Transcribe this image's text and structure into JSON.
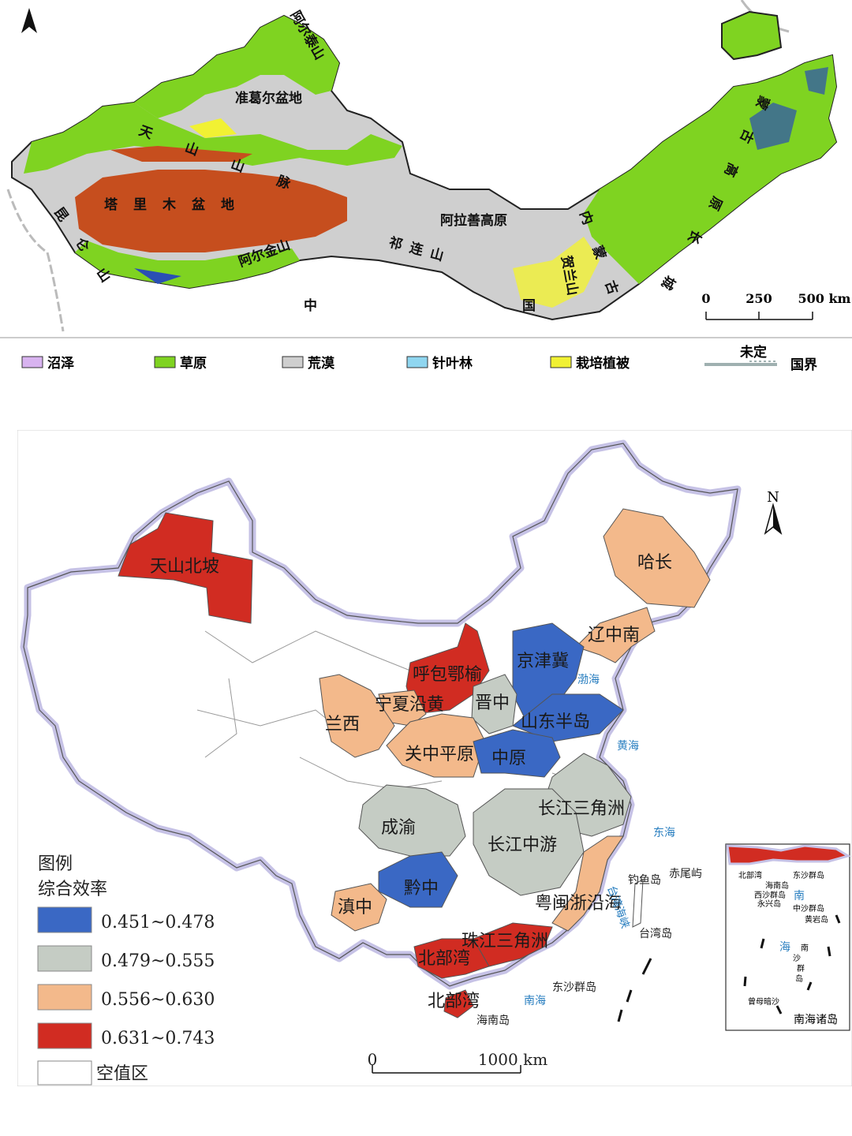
{
  "map_top": {
    "labels": {
      "altai": "阿尔泰山",
      "junggar": "准葛尔盆地",
      "tianshan": "天山山脉",
      "tarim": "塔里木盆地",
      "kunlun": "昆仑山",
      "altun": "阿尔金山",
      "qilian": "祁连山",
      "alxa": "阿拉善高原",
      "helan": "贺兰山",
      "mongolia_plateau": "蒙古高原",
      "china": "中国",
      "inner_mongolia": "内蒙古",
      "greatwall": "长城"
    },
    "scale": {
      "t0": "0",
      "t1": "250",
      "t2": "500 km"
    },
    "legend": {
      "swamp": "沼泽",
      "grassland": "草原",
      "desert": "荒漠",
      "conifer": "针叶林",
      "cultivated": "栽培植被",
      "undetermined": "未定",
      "border": "国界"
    },
    "colors": {
      "swamp": "#d8b3f0",
      "grassland": "#7fd321",
      "desert": "#cfcfcf",
      "conifer": "#8fd6f0",
      "cultivated": "#f1f133",
      "basin": "#c64e1e"
    }
  },
  "map_bottom": {
    "regions": {
      "tianshan_north": "天山北坡",
      "hachang": "哈长",
      "liaozhongnan": "辽中南",
      "jingjinji": "京津冀",
      "hubaoeyu": "呼包鄂榆",
      "jinzhong": "晋中",
      "ningxia": "宁夏沿黄",
      "lanxi": "兰西",
      "shandong": "山东半岛",
      "guanzhong": "关中平原",
      "zhongyuan": "中原",
      "yangtze_delta": "长江三角洲",
      "chengyu": "成渝",
      "yangtze_mid": "长江中游",
      "qianzhong": "黔中",
      "dianzhong": "滇中",
      "yuemin": "粤闽浙沿海",
      "prd": "珠江三角洲",
      "beibu": "北部湾",
      "beibu_sea": "北部湾"
    },
    "seas": {
      "bohai": "渤海",
      "yellow": "黄海",
      "east": "东海",
      "south": "南海",
      "strait": "台湾海峡"
    },
    "islands": {
      "diaoyu": "钓鱼岛",
      "chiwei": "赤尾屿",
      "taiwan": "台湾岛",
      "dongsha": "东沙群岛",
      "hainan": "海南岛"
    },
    "inset": {
      "caption": "南海诸岛",
      "beibu": "北部湾",
      "dongsha": "东沙群岛",
      "hainan": "海南岛",
      "xisha": "西沙群岛",
      "yongxing": "永兴岛",
      "nan": "南",
      "zhongsha": "中沙群岛",
      "huangyan": "黄岩岛",
      "hai": "海",
      "nan2": "南",
      "sha": "沙",
      "qun": "群",
      "dao": "岛",
      "zengmu": "曾母暗沙"
    },
    "legend": {
      "title": "图例",
      "subtitle": "综合效率",
      "classes": [
        "0.451~0.478",
        "0.479~0.555",
        "0.556~0.630",
        "0.631~0.743"
      ],
      "empty": "空值区"
    },
    "scale": {
      "t0": "0",
      "t1": "1000 km"
    },
    "north": "N",
    "colors": {
      "class1": "#3a68c4",
      "class2": "#c5ccc4",
      "class3": "#f3b98b",
      "class4": "#d12c22",
      "empty": "#ffffff",
      "border_glow": "#c6c2e6"
    }
  }
}
